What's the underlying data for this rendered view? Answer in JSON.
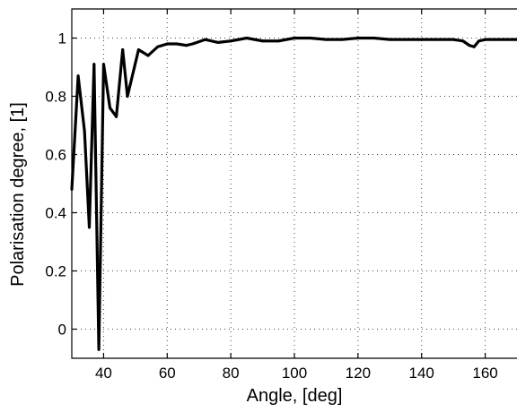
{
  "chart_data": {
    "type": "line",
    "title": "",
    "xlabel": "Angle, [deg]",
    "ylabel": "Polarisation degree, [1]",
    "xlim": [
      30,
      170
    ],
    "ylim": [
      -0.1,
      1.1
    ],
    "grid": true,
    "x_ticks": [
      40,
      60,
      80,
      100,
      120,
      140,
      160
    ],
    "y_ticks": [
      0,
      0.2,
      0.4,
      0.6,
      0.8,
      1
    ],
    "line_color": "#000000",
    "series": [
      {
        "x": [
          30,
          32,
          34,
          35.5,
          37,
          38.5,
          40,
          42,
          44,
          46,
          47.5,
          51,
          54,
          57,
          60,
          63,
          66,
          68,
          72,
          76,
          80,
          85,
          90,
          95,
          100,
          105,
          110,
          115,
          120,
          125,
          130,
          135,
          140,
          145,
          150,
          153,
          155,
          156.5,
          158,
          160,
          163,
          166,
          170
        ],
        "y": [
          0.48,
          0.87,
          0.68,
          0.35,
          0.91,
          -0.07,
          0.91,
          0.76,
          0.73,
          0.96,
          0.8,
          0.96,
          0.94,
          0.97,
          0.98,
          0.98,
          0.975,
          0.98,
          0.995,
          0.985,
          0.99,
          1.0,
          0.99,
          0.99,
          1.0,
          1.0,
          0.995,
          0.995,
          1.0,
          1.0,
          0.995,
          0.995,
          0.995,
          0.995,
          0.995,
          0.99,
          0.975,
          0.97,
          0.99,
          0.995,
          0.995,
          0.995,
          0.995
        ]
      }
    ]
  }
}
